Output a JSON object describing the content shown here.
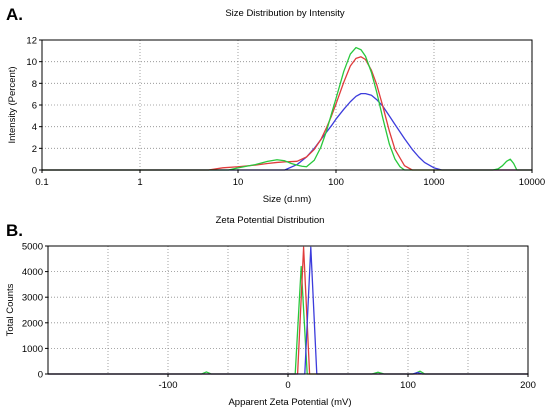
{
  "chart_data": [
    {
      "panel_label": "A.",
      "type": "line",
      "title": "Size Distribution by Intensity",
      "xlabel": "Size (d.nm)",
      "ylabel": "Intensity (Percent)",
      "xscale": "log",
      "xlim": [
        0.1,
        10000
      ],
      "ylim": [
        0,
        12
      ],
      "grid": true,
      "legend": "none",
      "x_ticks": [
        0.1,
        1,
        10,
        100,
        1000,
        10000
      ],
      "x_tick_labels": [
        "0.1",
        "1",
        "10",
        "100",
        "1000",
        "10000"
      ],
      "y_ticks": [
        0,
        2,
        4,
        6,
        8,
        10,
        12
      ],
      "y_tick_labels": [
        "0",
        "2",
        "4",
        "6",
        "8",
        "10",
        "12"
      ],
      "series": [
        {
          "color": "#3c3cdc",
          "x": [
            0.1,
            30,
            40,
            50,
            60,
            70,
            80,
            90,
            100,
            120,
            140,
            160,
            180,
            200,
            230,
            260,
            300,
            350,
            400,
            500,
            600,
            700,
            800,
            1000,
            1200,
            10000
          ],
          "y": [
            0,
            0,
            0.5,
            1.2,
            2.0,
            2.8,
            3.5,
            4.1,
            4.7,
            5.6,
            6.3,
            6.8,
            7.05,
            7.05,
            6.9,
            6.5,
            5.9,
            5.0,
            4.2,
            2.9,
            1.9,
            1.2,
            0.7,
            0.2,
            0,
            0
          ]
        },
        {
          "color": "#e03c3c",
          "x": [
            0.1,
            5,
            7,
            10,
            15,
            20,
            25,
            30,
            40,
            50,
            60,
            70,
            80,
            90,
            100,
            120,
            140,
            160,
            180,
            200,
            230,
            260,
            300,
            350,
            400,
            500,
            600,
            10000
          ],
          "y": [
            0,
            0,
            0.2,
            0.3,
            0.45,
            0.6,
            0.7,
            0.75,
            0.8,
            1.2,
            1.9,
            2.8,
            3.9,
            5.0,
            6.1,
            8.1,
            9.6,
            10.3,
            10.45,
            10.2,
            9.2,
            7.9,
            5.9,
            3.6,
            1.9,
            0.4,
            0,
            0
          ]
        },
        {
          "color": "#28c83c",
          "x": [
            0.1,
            8,
            10,
            15,
            20,
            25,
            30,
            35,
            40,
            45,
            50,
            60,
            70,
            80,
            90,
            100,
            120,
            140,
            160,
            180,
            200,
            230,
            260,
            300,
            350,
            400,
            450,
            500,
            4000,
            4500,
            5000,
            5500,
            6000,
            6500,
            7000,
            10000
          ],
          "y": [
            0,
            0,
            0.2,
            0.5,
            0.8,
            0.95,
            0.85,
            0.6,
            0.45,
            0.35,
            0.3,
            0.9,
            2.1,
            3.6,
            5.2,
            6.6,
            9.1,
            10.7,
            11.3,
            11.1,
            10.5,
            9.0,
            7.2,
            4.8,
            2.4,
            1.0,
            0.3,
            0,
            0,
            0.1,
            0.4,
            0.8,
            1.0,
            0.6,
            0,
            0
          ]
        }
      ]
    },
    {
      "panel_label": "B.",
      "type": "line",
      "title": "Zeta Potential Distribution",
      "xlabel": "Apparent Zeta Potential (mV)",
      "ylabel": "Total Counts",
      "xlim": [
        -200,
        200
      ],
      "ylim": [
        0,
        5000
      ],
      "grid": true,
      "legend": "none",
      "x_ticks": [
        -100,
        0,
        100,
        200
      ],
      "x_tick_labels": [
        "-100",
        "0",
        "100",
        "200"
      ],
      "y_ticks": [
        0,
        1000,
        2000,
        3000,
        4000,
        5000
      ],
      "y_tick_labels": [
        "0",
        "1000",
        "2000",
        "3000",
        "4000",
        "5000"
      ],
      "series": [
        {
          "color": "#28c83c",
          "x": [
            -200,
            -72,
            -68,
            -64,
            0,
            6,
            11,
            16,
            70,
            75,
            80,
            105,
            110,
            114,
            200
          ],
          "y": [
            0,
            0,
            80,
            0,
            0,
            0,
            4200,
            0,
            0,
            70,
            0,
            0,
            110,
            0,
            0
          ]
        },
        {
          "color": "#e03c3c",
          "x": [
            -200,
            8,
            13,
            18,
            200
          ],
          "y": [
            0,
            0,
            4950,
            0,
            0
          ]
        },
        {
          "color": "#3c3cdc",
          "x": [
            -200,
            14,
            19,
            24,
            104,
            108,
            112,
            200
          ],
          "y": [
            0,
            0,
            4950,
            0,
            0,
            60,
            0,
            0
          ]
        }
      ]
    }
  ]
}
